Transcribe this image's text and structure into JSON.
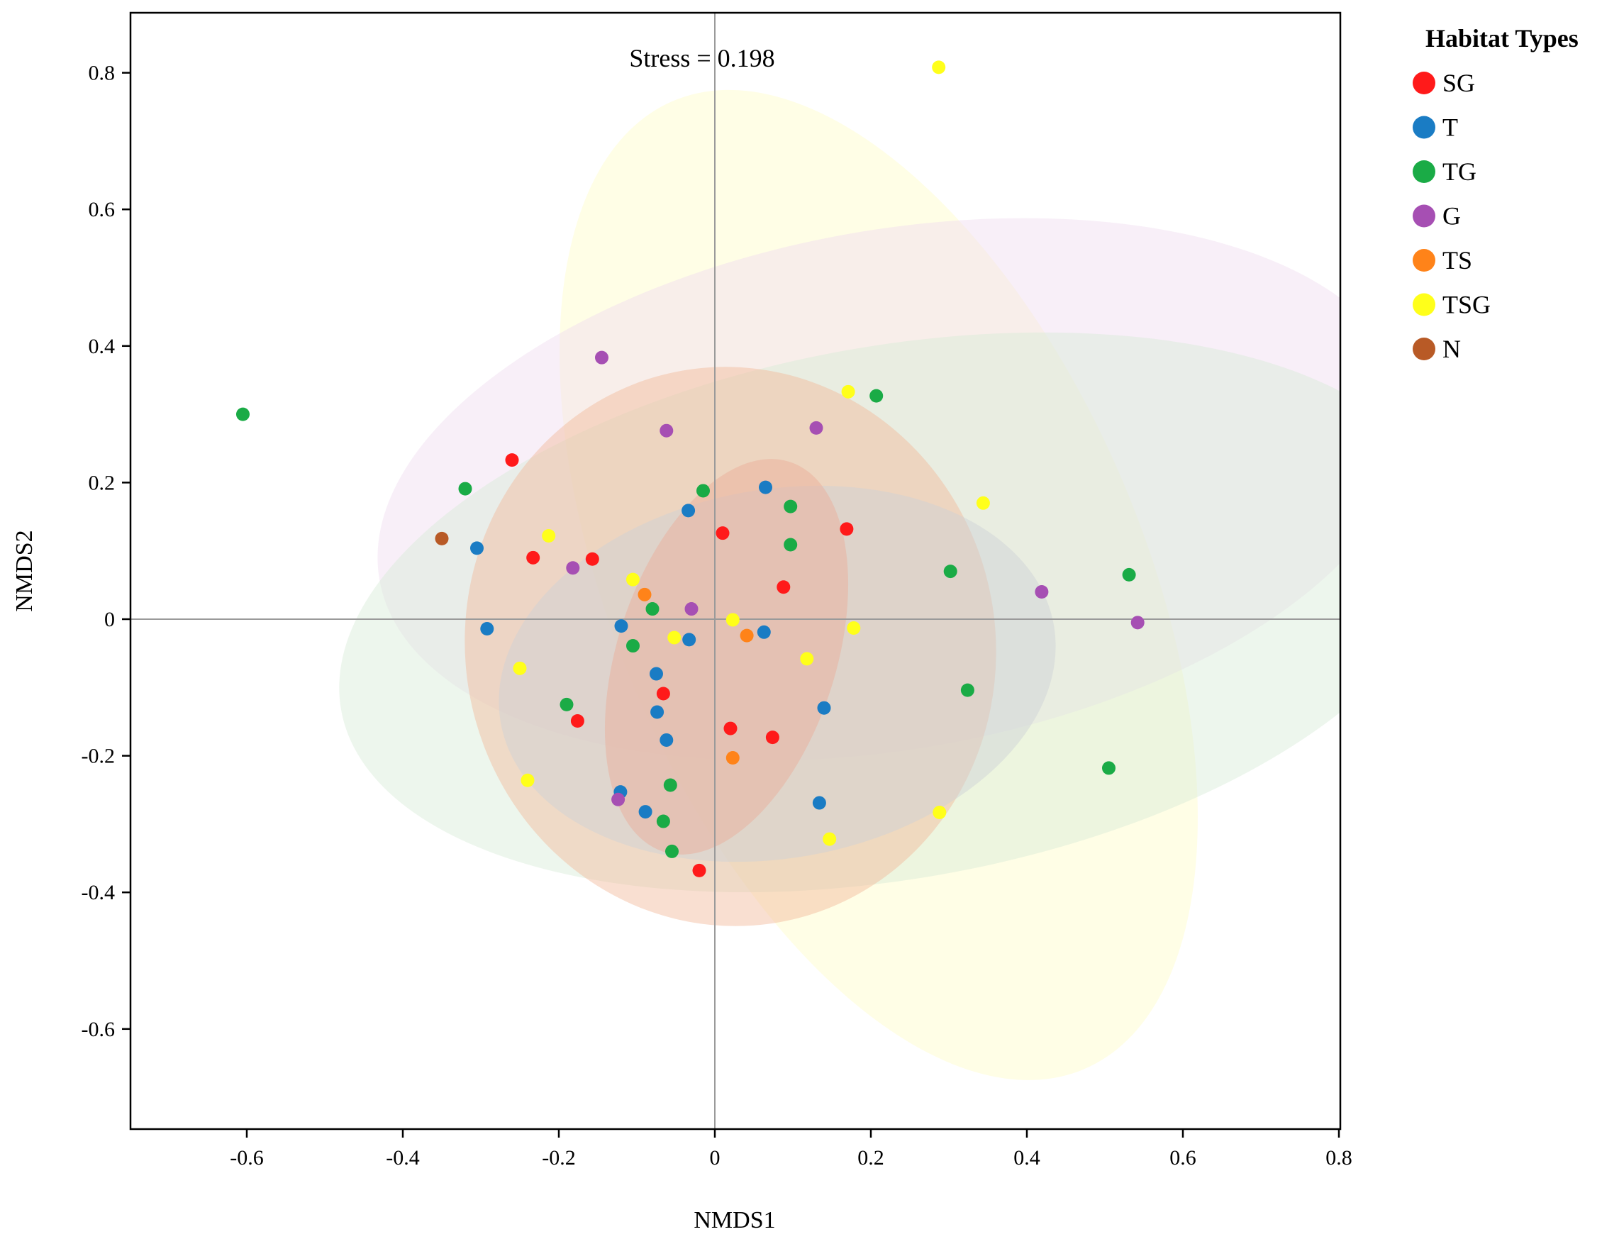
{
  "chart_data": {
    "type": "scatter",
    "title": "",
    "xlabel": "NMDS1",
    "ylabel": "NMDS2",
    "xlim": [
      -0.75,
      0.8
    ],
    "ylim": [
      -0.75,
      0.88
    ],
    "xticks": [
      -0.6,
      -0.4,
      -0.2,
      0,
      0.2,
      0.4,
      0.6,
      0.8
    ],
    "xtick_labels": [
      "-0.6",
      "-0.4",
      "-0.2",
      "0",
      "0.2",
      "0.4",
      "0.6",
      "0.8"
    ],
    "yticks": [
      -0.6,
      -0.4,
      -0.2,
      0,
      0.2,
      0.4,
      0.6,
      0.8
    ],
    "ytick_labels": [
      "-0.6",
      "-0.4",
      "-0.2",
      "0",
      "0.2",
      "0.4",
      "0.6",
      "0.8"
    ],
    "annotation": "Stress = 0.198",
    "legend_title": "Habitat Types",
    "legend_position": "right",
    "reference_lines": {
      "x": 0,
      "y": 0
    },
    "series": [
      {
        "name": "SG",
        "color": "#ff1a1a",
        "points": [
          [
            -0.26,
            0.233
          ],
          [
            -0.233,
            0.09
          ],
          [
            -0.157,
            0.088
          ],
          [
            0.01,
            0.126
          ],
          [
            0.169,
            0.132
          ],
          [
            0.088,
            0.047
          ],
          [
            -0.066,
            -0.109
          ],
          [
            -0.176,
            -0.149
          ],
          [
            0.02,
            -0.16
          ],
          [
            0.074,
            -0.173
          ],
          [
            -0.02,
            -0.368
          ]
        ]
      },
      {
        "name": "T",
        "color": "#1a7cc4",
        "points": [
          [
            -0.305,
            0.104
          ],
          [
            -0.292,
            -0.014
          ],
          [
            -0.034,
            0.159
          ],
          [
            0.065,
            0.193
          ],
          [
            -0.12,
            -0.01
          ],
          [
            -0.033,
            -0.03
          ],
          [
            0.063,
            -0.019
          ],
          [
            -0.075,
            -0.08
          ],
          [
            -0.074,
            -0.136
          ],
          [
            -0.062,
            -0.177
          ],
          [
            0.14,
            -0.13
          ],
          [
            -0.121,
            -0.253
          ],
          [
            -0.089,
            -0.282
          ],
          [
            0.134,
            -0.269
          ]
        ]
      },
      {
        "name": "TG",
        "color": "#1aab46",
        "points": [
          [
            -0.605,
            0.3
          ],
          [
            -0.32,
            0.191
          ],
          [
            -0.015,
            0.188
          ],
          [
            0.097,
            0.165
          ],
          [
            0.097,
            0.109
          ],
          [
            0.207,
            0.327
          ],
          [
            -0.08,
            0.015
          ],
          [
            -0.105,
            -0.039
          ],
          [
            0.302,
            0.07
          ],
          [
            0.531,
            0.065
          ],
          [
            -0.19,
            -0.125
          ],
          [
            0.324,
            -0.104
          ],
          [
            -0.057,
            -0.243
          ],
          [
            -0.066,
            -0.296
          ],
          [
            -0.055,
            -0.34
          ],
          [
            0.505,
            -0.218
          ]
        ]
      },
      {
        "name": "G",
        "color": "#a64fb3",
        "points": [
          [
            -0.145,
            0.383
          ],
          [
            -0.062,
            0.276
          ],
          [
            0.13,
            0.28
          ],
          [
            -0.182,
            0.075
          ],
          [
            -0.03,
            0.015
          ],
          [
            0.419,
            0.04
          ],
          [
            0.542,
            -0.005
          ],
          [
            -0.124,
            -0.264
          ]
        ]
      },
      {
        "name": "TS",
        "color": "#ff8319",
        "points": [
          [
            -0.09,
            0.036
          ],
          [
            0.041,
            -0.024
          ],
          [
            0.023,
            -0.203
          ]
        ]
      },
      {
        "name": "TSG",
        "color": "#ffff1a",
        "points": [
          [
            0.287,
            0.808
          ],
          [
            0.171,
            0.333
          ],
          [
            0.344,
            0.17
          ],
          [
            -0.213,
            0.122
          ],
          [
            -0.105,
            0.058
          ],
          [
            -0.052,
            -0.027
          ],
          [
            0.023,
            -0.001
          ],
          [
            0.178,
            -0.013
          ],
          [
            0.118,
            -0.058
          ],
          [
            -0.25,
            -0.072
          ],
          [
            -0.24,
            -0.236
          ],
          [
            0.288,
            -0.283
          ],
          [
            0.147,
            -0.322
          ]
        ]
      },
      {
        "name": "N",
        "color": "#b85a26",
        "points": [
          [
            -0.35,
            0.118
          ]
        ]
      }
    ],
    "ellipses": [
      {
        "group": "TSG",
        "color": "#fffcc8",
        "cx": 0.21,
        "cy": 0.05,
        "rx": 0.34,
        "ry": 0.77,
        "angle": -23
      },
      {
        "group": "G",
        "color": "#f0dcf0",
        "cx": 0.23,
        "cy": 0.19,
        "rx": 0.67,
        "ry": 0.38,
        "angle": -10
      },
      {
        "group": "TG",
        "color": "#d6ecd6",
        "cx": 0.23,
        "cy": 0.01,
        "rx": 0.72,
        "ry": 0.39,
        "angle": -10
      },
      {
        "group": "TS",
        "color": "#f2b898",
        "cx": 0.02,
        "cy": -0.04,
        "rx": 0.34,
        "ry": 0.41,
        "angle": -10
      },
      {
        "group": "T",
        "color": "#cdd0d8",
        "cx": 0.08,
        "cy": -0.08,
        "rx": 0.36,
        "ry": 0.27,
        "angle": -10
      },
      {
        "group": "SG",
        "color": "#ebaa96",
        "cx": 0.015,
        "cy": -0.055,
        "rx": 0.14,
        "ry": 0.3,
        "angle": 18
      }
    ]
  }
}
